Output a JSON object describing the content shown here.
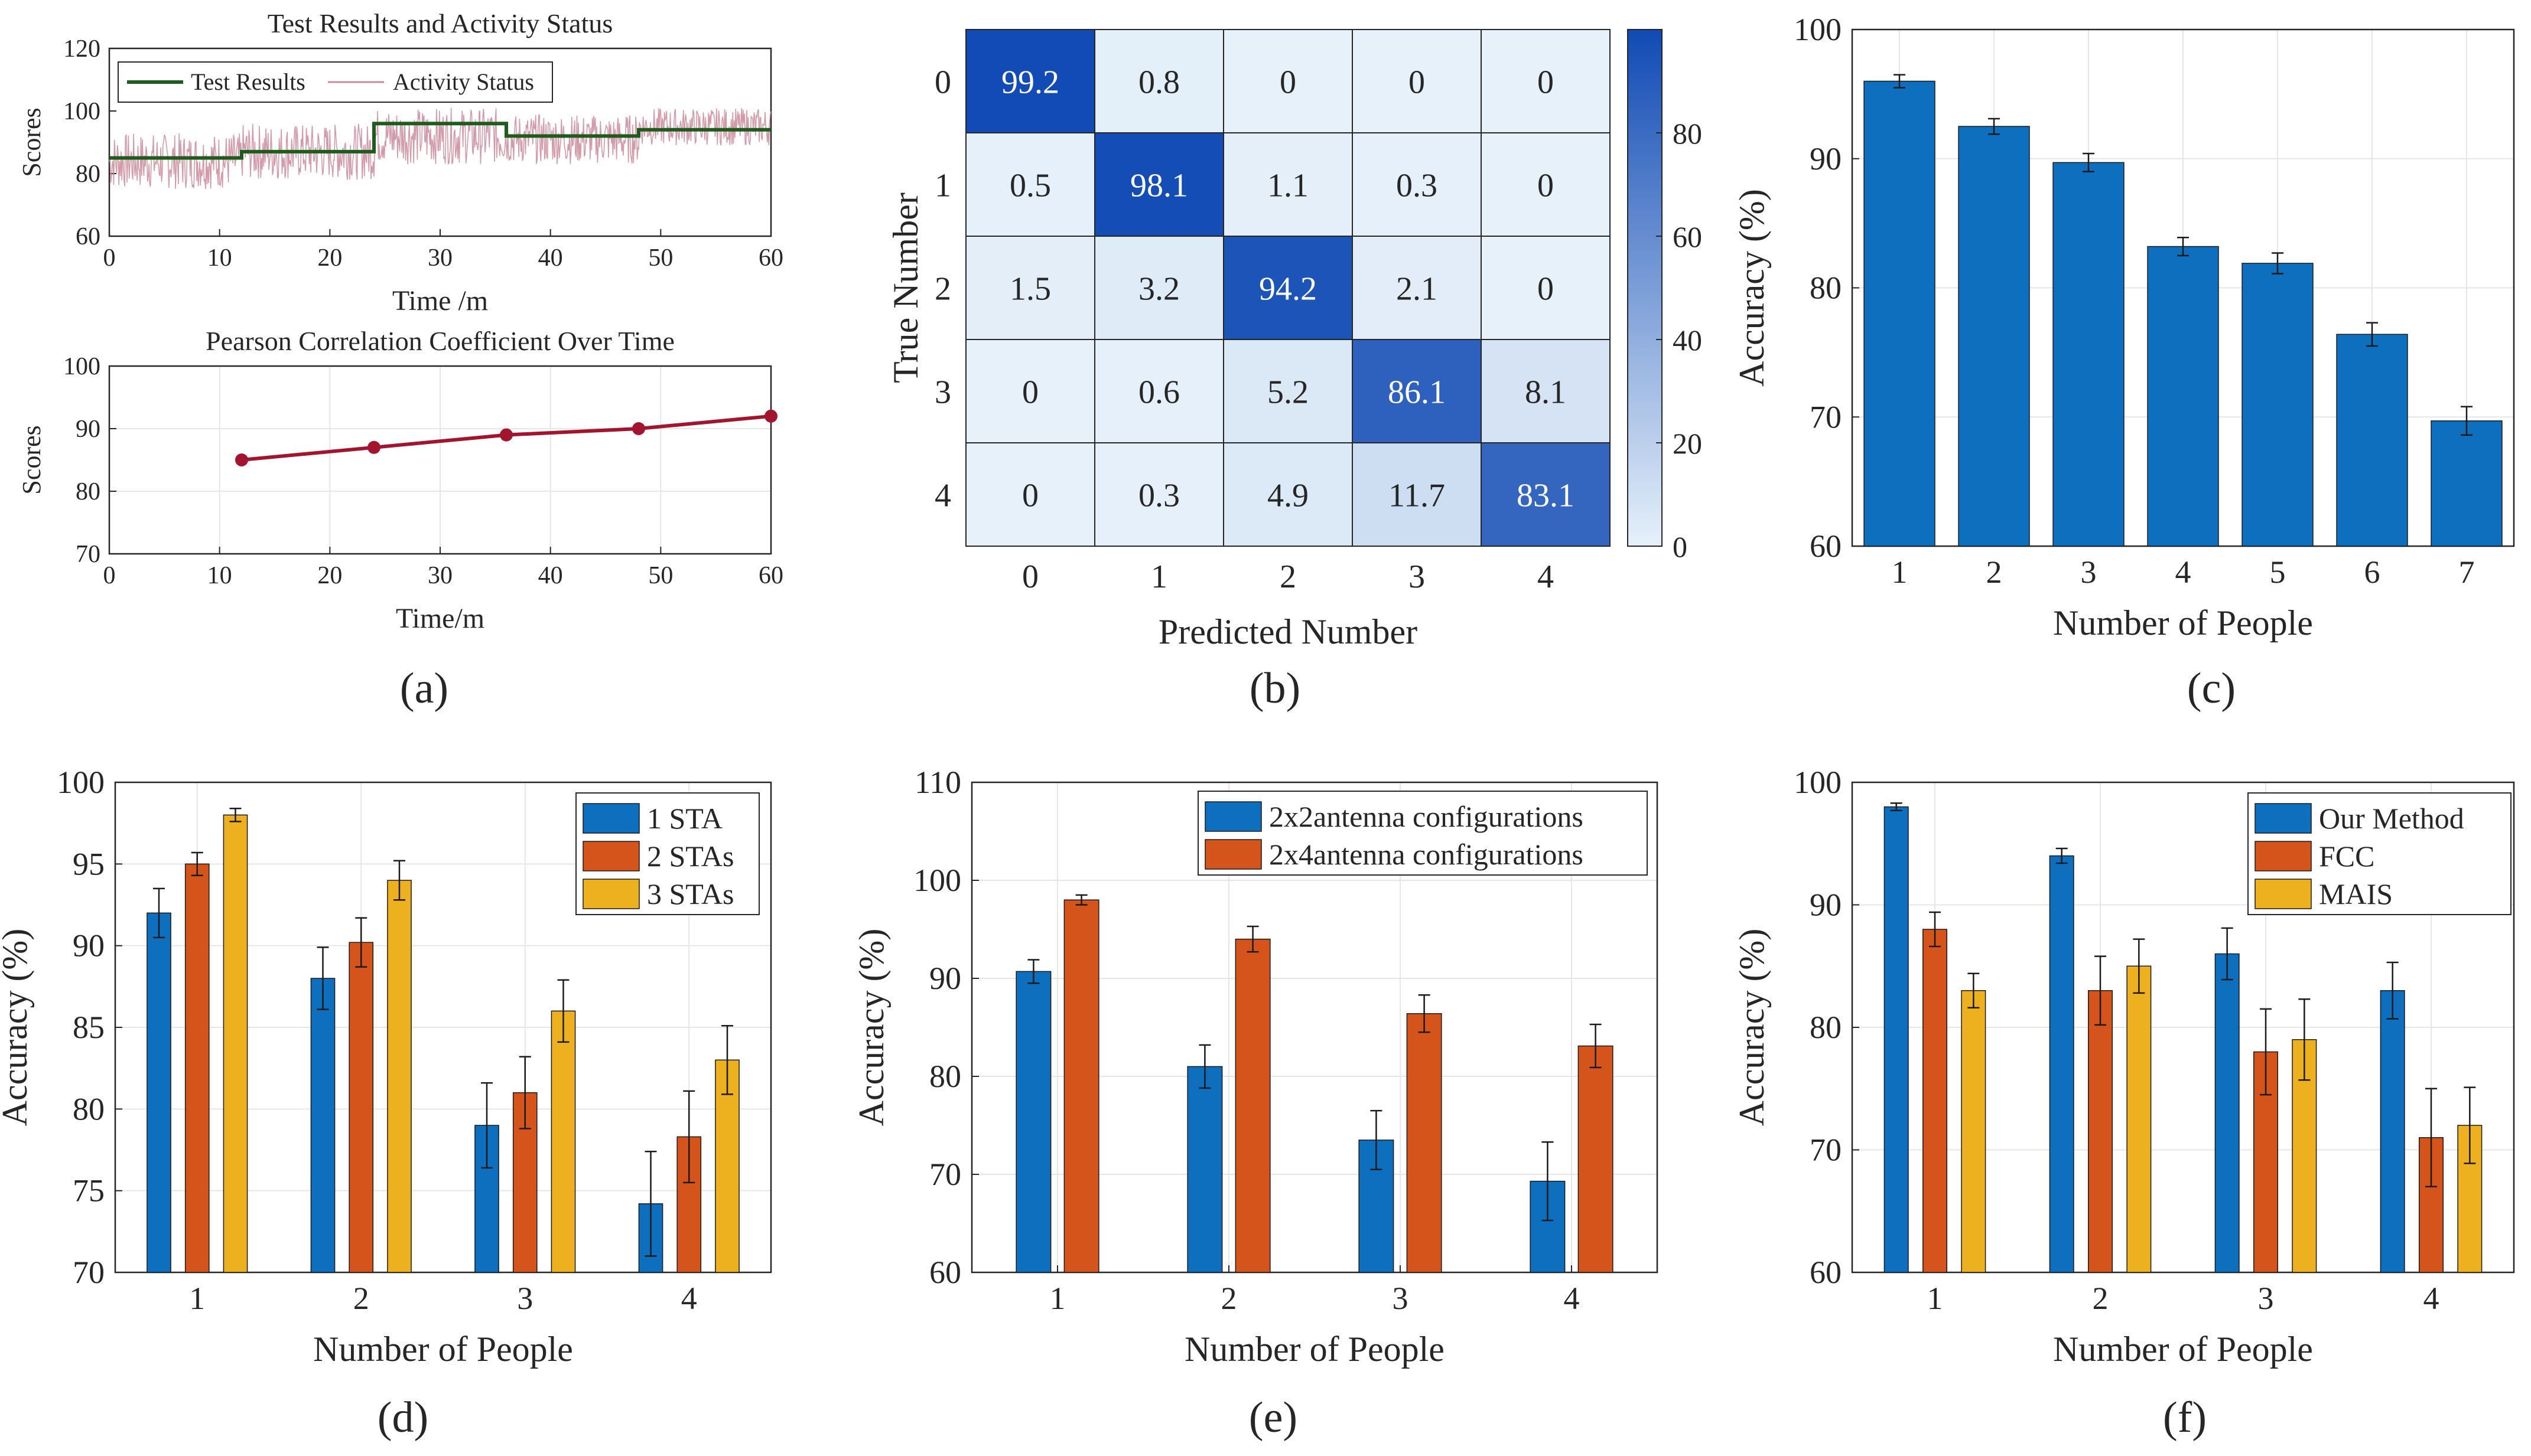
{
  "figure": {
    "panel_labels": [
      "(a)",
      "(b)",
      "(c)",
      "(d)",
      "(e)",
      "(f)"
    ]
  },
  "chart_data": [
    {
      "panel": "(a)",
      "type": "line",
      "title": "Test Results and Activity Status",
      "xlabel": "Time /m",
      "ylabel": "Scores",
      "xlim": [
        0,
        60
      ],
      "ylim": [
        60,
        120
      ],
      "xticks": [
        0,
        10,
        20,
        30,
        40,
        50,
        60
      ],
      "yticks": [
        60,
        80,
        100,
        120
      ],
      "legend": [
        "Test Results",
        "Activity Status"
      ],
      "series": [
        {
          "name": "Test Results",
          "color": "#1e5c1e",
          "type": "step",
          "x": [
            0,
            12,
            12,
            24,
            24,
            36,
            36,
            48,
            48,
            60
          ],
          "y": [
            85,
            85,
            87,
            87,
            96,
            96,
            92,
            92,
            94,
            94
          ]
        },
        {
          "name": "Activity Status",
          "color": "#c98a9b",
          "type": "noisy",
          "mean_segments": [
            {
              "x0": 0,
              "x1": 12,
              "mean": 84,
              "spread": 9
            },
            {
              "x0": 12,
              "x1": 24,
              "mean": 87,
              "spread": 9
            },
            {
              "x0": 24,
              "x1": 36,
              "mean": 92,
              "spread": 9
            },
            {
              "x0": 36,
              "x1": 48,
              "mean": 91,
              "spread": 8
            },
            {
              "x0": 48,
              "x1": 60,
              "mean": 95,
              "spread": 6
            }
          ]
        }
      ]
    },
    {
      "panel": "(a)",
      "type": "line",
      "title": "Pearson Correlation Coefficient Over Time",
      "xlabel": "Time/m",
      "ylabel": "Scores",
      "xlim": [
        0,
        60
      ],
      "ylim": [
        70,
        100
      ],
      "xticks": [
        0,
        10,
        20,
        30,
        40,
        50,
        60
      ],
      "yticks": [
        70,
        80,
        90,
        100
      ],
      "series": [
        {
          "name": "Pearson",
          "color": "#a3142e",
          "x": [
            12,
            24,
            36,
            48,
            60
          ],
          "y": [
            85,
            87,
            89,
            90,
            92
          ]
        }
      ]
    },
    {
      "panel": "(b)",
      "type": "heatmap",
      "xlabel": "Predicted Number",
      "ylabel": "True Number",
      "x_labels": [
        "0",
        "1",
        "2",
        "3",
        "4"
      ],
      "y_labels": [
        "0",
        "1",
        "2",
        "3",
        "4"
      ],
      "cells": [
        [
          "99.2",
          "0.8",
          "0",
          "0",
          "0"
        ],
        [
          "0.5",
          "98.1",
          "1.1",
          "0.3",
          "0"
        ],
        [
          "1.5",
          "3.2",
          "94.2",
          "2.1",
          "0"
        ],
        [
          "0",
          "0.6",
          "5.2",
          "86.1",
          "8.1"
        ],
        [
          "0",
          "0.3",
          "4.9",
          "11.7",
          "83.1"
        ]
      ],
      "colorbar_ticks": [
        0,
        20,
        40,
        60,
        80
      ],
      "colorbar_range": [
        0,
        100
      ]
    },
    {
      "panel": "(c)",
      "type": "bar",
      "xlabel": "Number of People",
      "ylabel": "Accuracy (%)",
      "categories": [
        "1",
        "2",
        "3",
        "4",
        "5",
        "6",
        "7"
      ],
      "ylim": [
        60,
        100
      ],
      "yticks": [
        60,
        70,
        80,
        90,
        100
      ],
      "series": [
        {
          "name": "Accuracy",
          "color": "#0f6fbf",
          "values": [
            96,
            92.5,
            89.7,
            83.2,
            81.9,
            76.4,
            69.7
          ],
          "errors": [
            0.5,
            0.6,
            0.7,
            0.7,
            0.8,
            0.9,
            1.1
          ]
        }
      ]
    },
    {
      "panel": "(d)",
      "type": "bar",
      "xlabel": "Number of People",
      "ylabel": "Accuracy (%)",
      "categories": [
        "1",
        "2",
        "3",
        "4"
      ],
      "ylim": [
        70,
        100
      ],
      "yticks": [
        70,
        75,
        80,
        85,
        90,
        95,
        100
      ],
      "legend": [
        "1 STA",
        "2 STAs",
        "3 STAs"
      ],
      "series": [
        {
          "name": "1 STA",
          "color": "#0f6fbf",
          "values": [
            92,
            88,
            79,
            74.2
          ],
          "errors": [
            1.5,
            1.9,
            2.6,
            3.2
          ]
        },
        {
          "name": "2 STAs",
          "color": "#d4541c",
          "values": [
            95,
            90.2,
            81,
            78.3
          ],
          "errors": [
            0.7,
            1.5,
            2.2,
            2.8
          ]
        },
        {
          "name": "3 STAs",
          "color": "#edb120",
          "values": [
            98,
            94,
            86,
            83
          ],
          "errors": [
            0.4,
            1.2,
            1.9,
            2.1
          ]
        }
      ]
    },
    {
      "panel": "(e)",
      "type": "bar",
      "xlabel": "Number of People",
      "ylabel": "Accuracy (%)",
      "categories": [
        "1",
        "2",
        "3",
        "4"
      ],
      "ylim": [
        60,
        110
      ],
      "yticks": [
        60,
        70,
        80,
        90,
        100,
        110
      ],
      "legend": [
        "2x2antenna configurations",
        "2x4antenna configurations"
      ],
      "series": [
        {
          "name": "2x2antenna configurations",
          "color": "#0f6fbf",
          "values": [
            90.7,
            81,
            73.5,
            69.3
          ],
          "errors": [
            1.2,
            2.2,
            3.0,
            4.0
          ]
        },
        {
          "name": "2x4antenna configurations",
          "color": "#d4541c",
          "values": [
            98,
            94,
            86.4,
            83.1
          ],
          "errors": [
            0.5,
            1.3,
            1.9,
            2.2
          ]
        }
      ]
    },
    {
      "panel": "(f)",
      "type": "bar",
      "xlabel": "Number of People",
      "ylabel": "Accuracy (%)",
      "categories": [
        "1",
        "2",
        "3",
        "4"
      ],
      "ylim": [
        60,
        100
      ],
      "yticks": [
        60,
        70,
        80,
        90,
        100
      ],
      "legend": [
        "Our Method",
        "FCC",
        "MAIS"
      ],
      "series": [
        {
          "name": "Our Method",
          "color": "#0f6fbf",
          "values": [
            98,
            94,
            86,
            83
          ],
          "errors": [
            0.3,
            0.6,
            2.1,
            2.3
          ]
        },
        {
          "name": "FCC",
          "color": "#d4541c",
          "values": [
            88,
            83,
            78,
            71
          ],
          "errors": [
            1.4,
            2.8,
            3.5,
            4.0
          ]
        },
        {
          "name": "MAIS",
          "color": "#edb120",
          "values": [
            83,
            85,
            79,
            72
          ],
          "errors": [
            1.4,
            2.2,
            3.3,
            3.1
          ]
        }
      ]
    }
  ]
}
